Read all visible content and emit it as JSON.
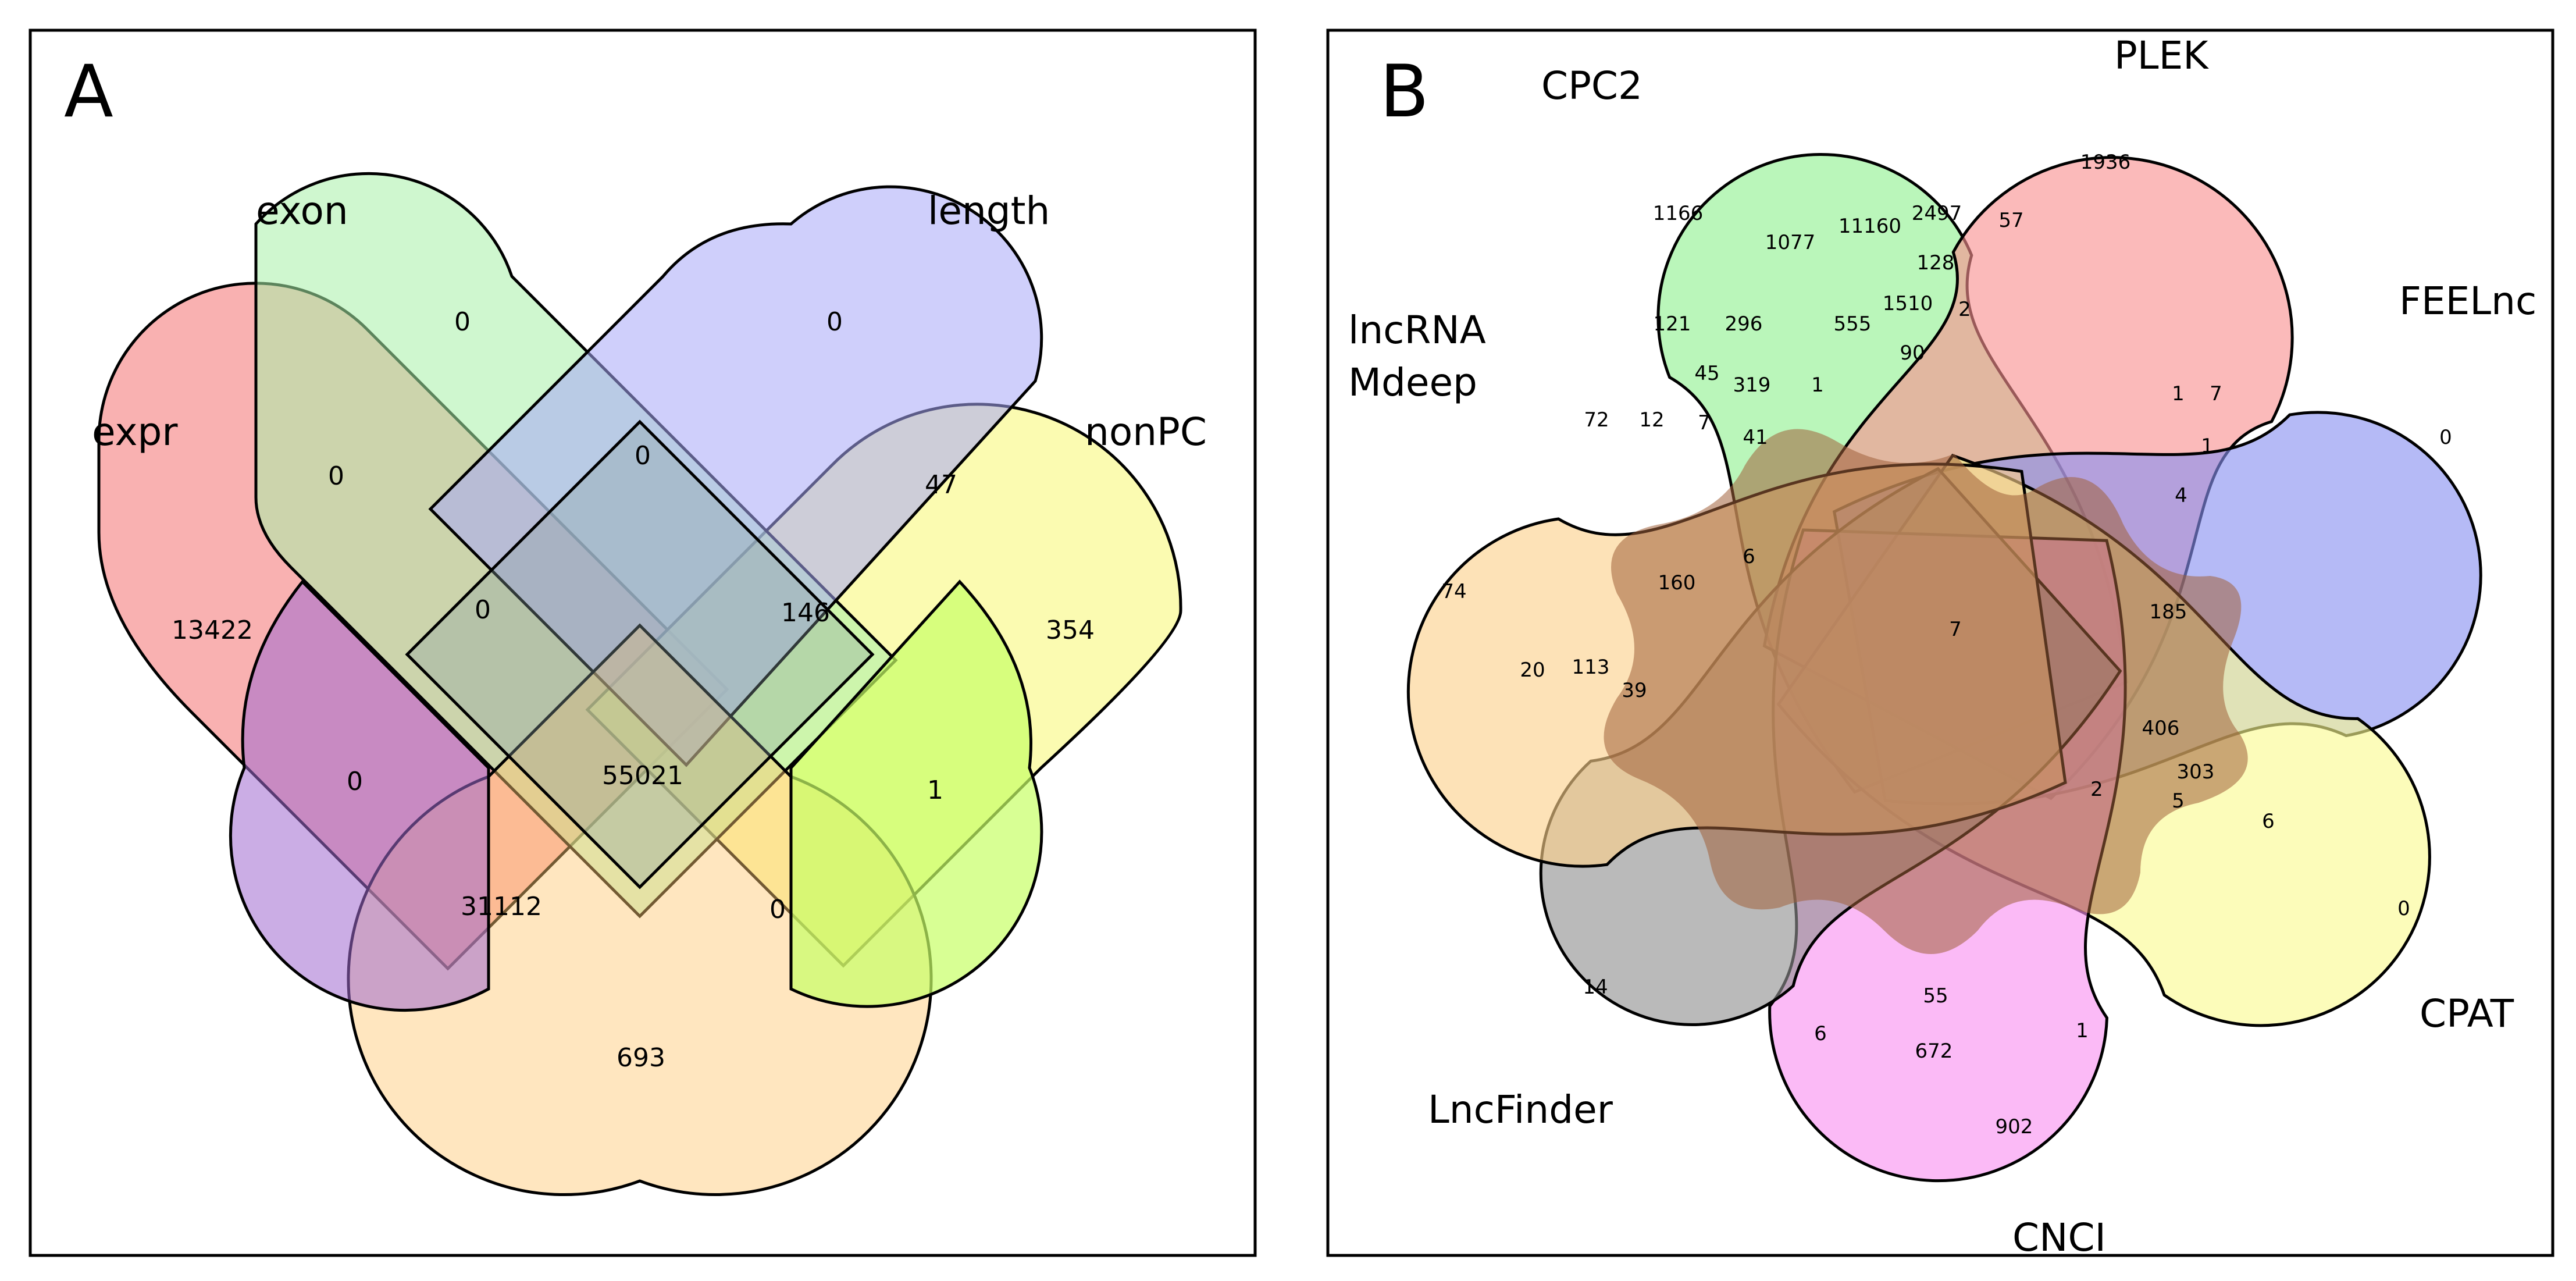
{
  "panels": {
    "a": {
      "letter": "A",
      "sets": {
        "expr": {
          "label": "expr",
          "color": "#f8a0a0"
        },
        "exon": {
          "label": "exon",
          "color": "#a8f0a8"
        },
        "length": {
          "label": "length",
          "color": "#a8a8f8"
        },
        "nonPC": {
          "label": "nonPC",
          "color": "#fafaa0"
        },
        "orange": {
          "color": "#ffc870"
        }
      },
      "counts": {
        "exon_only": "0",
        "length_only": "0",
        "expr_only": "13422",
        "nonPC_only": "354",
        "expr_exon": "0",
        "exon_length": "0",
        "length_nonPC": "47",
        "expr_exon_length": "0",
        "exon_length_nonPC": "146",
        "expr_purple": "0",
        "all": "55021",
        "nonPC_green": "1",
        "expr_bottom": "31112",
        "nonPC_bottom": "0",
        "bottom_only": "693"
      }
    },
    "b": {
      "letter": "B",
      "sets": {
        "cpc2": {
          "label": "CPC2",
          "color": "#90f090"
        },
        "plek": {
          "label": "PLEK",
          "color": "#f89090"
        },
        "feelnc": {
          "label": "FEELnc",
          "color": "#8890f0"
        },
        "cpat": {
          "label": "CPAT",
          "color": "#fafa90"
        },
        "cnci": {
          "label": "CNCI",
          "color": "#f890f0"
        },
        "lncfinder": {
          "label": "LncFinder",
          "color": "#909090"
        },
        "lncrna_mdeep": {
          "label_line1": "lncRNA",
          "label_line2": "Mdeep",
          "color": "#fbd08a"
        }
      },
      "counts": {
        "plek_only": "1936",
        "cpc2_only": "1166",
        "c57": "57",
        "c2497": "2497",
        "c1077": "1077",
        "c11160": "11160",
        "c128": "128",
        "c1510": "1510",
        "c2": "2",
        "c555": "555",
        "c90": "90",
        "c296": "296",
        "c121": "121",
        "c45": "45",
        "c319": "319",
        "c1a": "1",
        "c72": "72",
        "c12": "12",
        "c7a": "7",
        "c41": "41",
        "c1b": "1",
        "c7b": "7",
        "c1c": "1",
        "c4": "4",
        "feelnc_only": "0",
        "mdeep_only": "74",
        "c6a": "6",
        "c160": "160",
        "center": "7",
        "c185": "185",
        "c20": "20",
        "c113": "113",
        "c39": "39",
        "c406": "406",
        "c303": "303",
        "c2b": "2",
        "c5": "5",
        "c6b": "6",
        "cpat_only": "0",
        "lncfinder_only": "14",
        "c6c": "6",
        "c55": "55",
        "c672": "672",
        "c1d": "1",
        "cnci_only": "902"
      }
    }
  }
}
